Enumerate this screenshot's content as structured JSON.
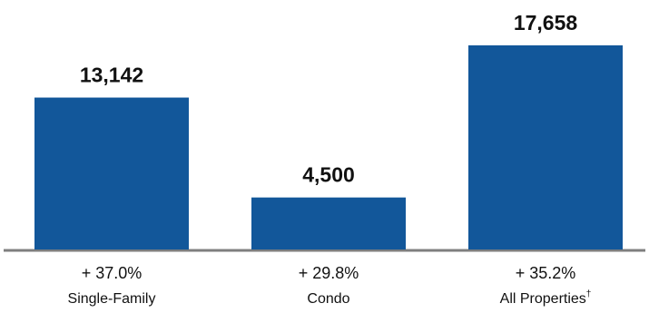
{
  "chart_data": {
    "type": "bar",
    "categories": [
      "Single-Family",
      "Condo",
      "All Properties"
    ],
    "category_footnote": [
      "",
      "",
      "†"
    ],
    "values": [
      13142,
      4500,
      17658
    ],
    "value_labels": [
      "13,142",
      "4,500",
      "17,658"
    ],
    "changes": [
      "+ 37.0%",
      "+ 29.8%",
      "+ 35.2%"
    ],
    "ylim": [
      0,
      17658
    ],
    "grid": false,
    "colors": {
      "bar": "#12579a",
      "axis": "#7f7f7f"
    }
  }
}
